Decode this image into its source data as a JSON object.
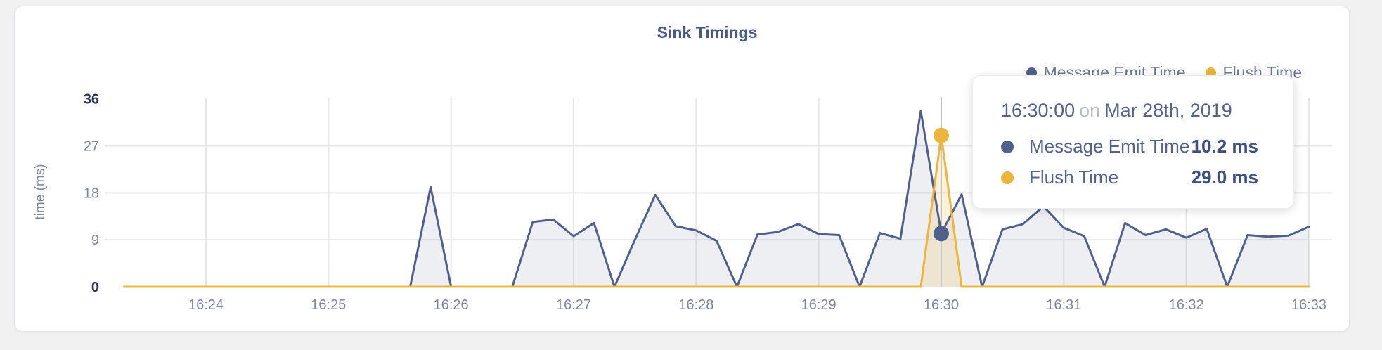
{
  "card": {
    "title": "Sink Timings"
  },
  "colors": {
    "emit_series": "#50608c",
    "emit_fill": "rgba(80,96,140,0.10)",
    "flush_series": "#ecb53e",
    "flush_fill": "rgba(236,181,62,0.18)",
    "gridline": "#e6e6e9",
    "crosshair": "#c4c4c7",
    "tick_label": "#7e87a1",
    "tick_label_strong": "#283157",
    "title_text": "#4a5a85"
  },
  "legend": {
    "items": [
      {
        "label": "Message Emit Time"
      },
      {
        "label": "Flush Time"
      }
    ]
  },
  "tooltip": {
    "time": "16:30:00",
    "conjunction": "on",
    "date": "Mar 28th, 2019",
    "rows": [
      {
        "name": "Message Emit Time",
        "value": "10.2 ms"
      },
      {
        "name": "Flush Time",
        "value": "29.0 ms"
      }
    ]
  },
  "chart_data": {
    "type": "area",
    "title": "Sink Timings",
    "xlabel": "",
    "ylabel": "time (ms)",
    "ylim": [
      0,
      36
    ],
    "grid": true,
    "legend_position": "top-right",
    "start_time": "16:23:20",
    "interval_seconds": 10,
    "x_tick_labels": [
      "16:24",
      "16:25",
      "16:26",
      "16:27",
      "16:28",
      "16:29",
      "16:30",
      "16:31",
      "16:32",
      "16:33"
    ],
    "y_ticks": [
      {
        "label": "0",
        "value": 0,
        "strong": true,
        "grid": false
      },
      {
        "label": "9",
        "value": 9,
        "strong": false,
        "grid": true
      },
      {
        "label": "18",
        "value": 18,
        "strong": false,
        "grid": true
      },
      {
        "label": "27",
        "value": 27,
        "strong": false,
        "grid": true
      },
      {
        "label": "36",
        "value": 36,
        "strong": true,
        "grid": false
      }
    ],
    "hover": {
      "index": 40,
      "time_label": "16:30:00"
    },
    "series": [
      {
        "name": "Message Emit Time",
        "unit": "ms",
        "values": [
          0,
          0,
          0,
          0,
          0,
          0,
          0,
          0,
          0,
          0,
          0,
          0,
          0,
          0,
          0,
          19.1,
          0,
          0,
          0,
          0,
          12.4,
          12.9,
          9.7,
          12.2,
          0,
          9,
          17.6,
          11.6,
          10.8,
          8.8,
          0,
          10,
          10.5,
          12,
          10.1,
          9.9,
          0,
          10.3,
          9.2,
          33.7,
          10.2,
          17.7,
          0,
          11,
          12,
          15.4,
          11.3,
          9.7,
          0,
          12.2,
          9.9,
          11,
          9.4,
          11.1,
          0,
          9.9,
          9.6,
          9.8,
          11.5
        ]
      },
      {
        "name": "Flush Time",
        "unit": "ms",
        "values": [
          0,
          0,
          0,
          0,
          0,
          0,
          0,
          0,
          0,
          0,
          0,
          0,
          0,
          0,
          0,
          0,
          0,
          0,
          0,
          0,
          0,
          0,
          0,
          0,
          0,
          0,
          0,
          0,
          0,
          0,
          0,
          0,
          0,
          0,
          0,
          0,
          0,
          0,
          0,
          0,
          29,
          0,
          0,
          0,
          0,
          0,
          0,
          0,
          0,
          0,
          0,
          0,
          0,
          0,
          0,
          0,
          0,
          0,
          0
        ]
      }
    ]
  }
}
